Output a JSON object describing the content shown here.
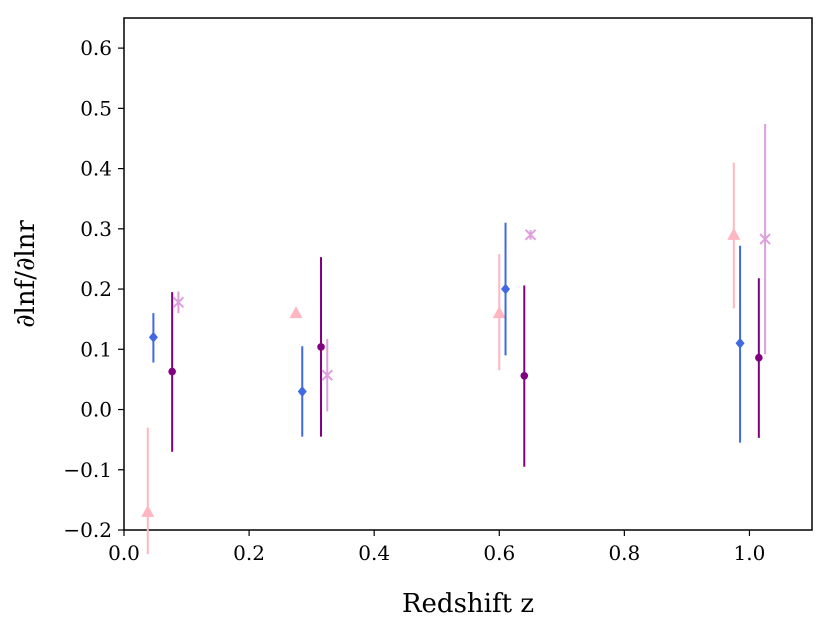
{
  "chart_data": {
    "type": "scatter",
    "title": "",
    "xlabel": "Redshift z",
    "ylabel": "∂lnf/∂lnr",
    "xlim": [
      0.0,
      1.1
    ],
    "ylim": [
      -0.2,
      0.65
    ],
    "xticks": [
      0.0,
      0.2,
      0.4,
      0.6,
      0.8,
      1.0
    ],
    "xtick_labels": [
      "0.0",
      "0.2",
      "0.4",
      "0.6",
      "0.8",
      "1.0"
    ],
    "yticks": [
      -0.2,
      -0.1,
      0.0,
      0.1,
      0.2,
      0.3,
      0.4,
      0.5,
      0.6
    ],
    "ytick_labels": [
      "−0.2",
      "−0.1",
      "0.0",
      "0.1",
      "0.2",
      "0.3",
      "0.4",
      "0.5",
      "0.6"
    ],
    "grid": false,
    "legend": "none",
    "series": [
      {
        "marker": "triangle",
        "color": "#ffb6c1",
        "points": [
          {
            "x": 0.038,
            "y": -0.17,
            "lo": -0.24,
            "hi": -0.03
          },
          {
            "x": 0.275,
            "y": 0.16,
            "lo": 0.16,
            "hi": 0.16
          },
          {
            "x": 0.6,
            "y": 0.16,
            "lo": 0.065,
            "hi": 0.258
          },
          {
            "x": 0.975,
            "y": 0.29,
            "lo": 0.168,
            "hi": 0.41
          }
        ]
      },
      {
        "marker": "diamond",
        "color": "#4169e1",
        "points": [
          {
            "x": 0.047,
            "y": 0.12,
            "lo": 0.078,
            "hi": 0.16
          },
          {
            "x": 0.285,
            "y": 0.03,
            "lo": -0.045,
            "hi": 0.105
          },
          {
            "x": 0.61,
            "y": 0.2,
            "lo": 0.09,
            "hi": 0.31
          },
          {
            "x": 0.985,
            "y": 0.11,
            "lo": -0.055,
            "hi": 0.272
          }
        ]
      },
      {
        "marker": "circle",
        "color": "#800080",
        "points": [
          {
            "x": 0.077,
            "y": 0.063,
            "lo": -0.07,
            "hi": 0.195
          },
          {
            "x": 0.315,
            "y": 0.104,
            "lo": -0.045,
            "hi": 0.253
          },
          {
            "x": 0.64,
            "y": 0.056,
            "lo": -0.095,
            "hi": 0.206
          },
          {
            "x": 1.015,
            "y": 0.086,
            "lo": -0.047,
            "hi": 0.218
          }
        ]
      },
      {
        "marker": "x",
        "color": "#dda0dd",
        "points": [
          {
            "x": 0.087,
            "y": 0.178,
            "lo": 0.16,
            "hi": 0.196
          },
          {
            "x": 0.325,
            "y": 0.057,
            "lo": -0.003,
            "hi": 0.117
          },
          {
            "x": 0.65,
            "y": 0.29,
            "lo": 0.282,
            "hi": 0.298
          },
          {
            "x": 1.025,
            "y": 0.283,
            "lo": 0.092,
            "hi": 0.474
          }
        ]
      }
    ]
  }
}
